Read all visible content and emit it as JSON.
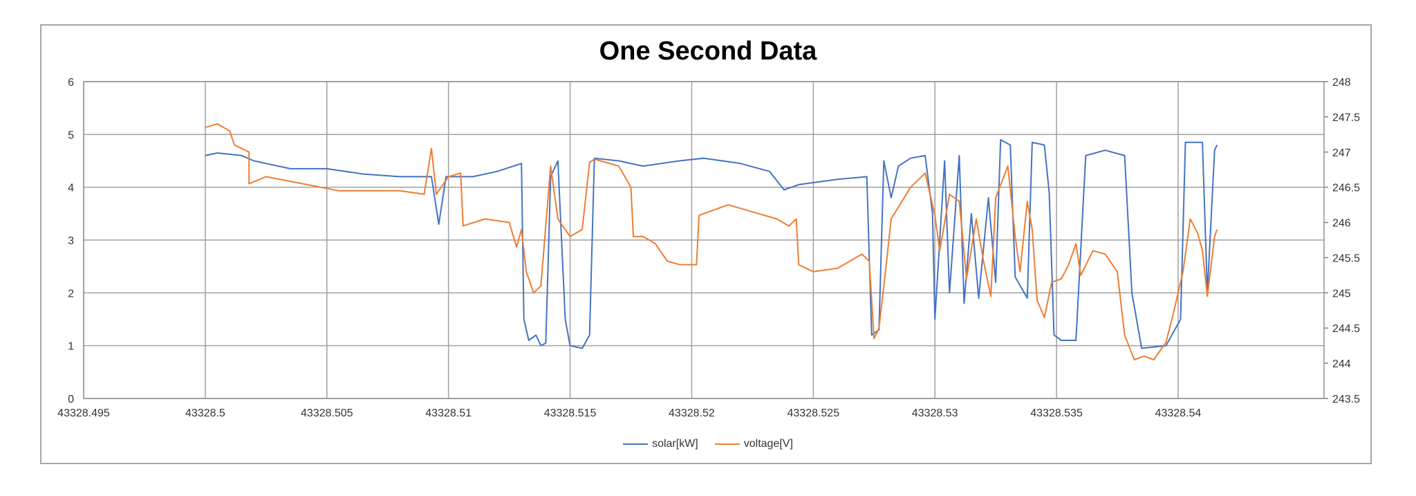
{
  "chart_data": {
    "type": "line",
    "title": "One Second Data",
    "x_ticks": [
      "43328.495",
      "43328.5",
      "43328.505",
      "43328.51",
      "43328.515",
      "43328.52",
      "43328.525",
      "43328.53",
      "43328.535",
      "43328.54"
    ],
    "xlim": [
      43328.495,
      43328.546
    ],
    "y_ticks_left": [
      "0",
      "1",
      "2",
      "3",
      "4",
      "5",
      "6"
    ],
    "ylim_left": [
      0,
      6
    ],
    "y_ticks_right": [
      "243.5",
      "244",
      "244.5",
      "245",
      "245.5",
      "246",
      "246.5",
      "247",
      "247.5",
      "248"
    ],
    "ylim_right": [
      243.5,
      248
    ],
    "grid": true,
    "legend_position": "bottom",
    "series": [
      {
        "name": "solar[kW]",
        "axis": "left",
        "color": "#4472C4",
        "points": [
          [
            43328.5,
            4.6
          ],
          [
            43328.5005,
            4.65
          ],
          [
            43328.5015,
            4.6
          ],
          [
            43328.502,
            4.5
          ],
          [
            43328.5035,
            4.35
          ],
          [
            43328.505,
            4.35
          ],
          [
            43328.5065,
            4.25
          ],
          [
            43328.508,
            4.2
          ],
          [
            43328.5093,
            4.2
          ],
          [
            43328.5096,
            3.3
          ],
          [
            43328.5099,
            4.2
          ],
          [
            43328.511,
            4.2
          ],
          [
            43328.512,
            4.3
          ],
          [
            43328.513,
            4.45
          ],
          [
            43328.5131,
            1.5
          ],
          [
            43328.5133,
            1.1
          ],
          [
            43328.5136,
            1.2
          ],
          [
            43328.5138,
            1.0
          ],
          [
            43328.514,
            1.05
          ],
          [
            43328.5142,
            4.2
          ],
          [
            43328.5145,
            4.5
          ],
          [
            43328.5148,
            1.5
          ],
          [
            43328.515,
            1.0
          ],
          [
            43328.5155,
            0.95
          ],
          [
            43328.5158,
            1.2
          ],
          [
            43328.516,
            4.55
          ],
          [
            43328.517,
            4.5
          ],
          [
            43328.518,
            4.4
          ],
          [
            43328.5195,
            4.5
          ],
          [
            43328.5205,
            4.55
          ],
          [
            43328.522,
            4.45
          ],
          [
            43328.5232,
            4.3
          ],
          [
            43328.5238,
            3.95
          ],
          [
            43328.5244,
            4.05
          ],
          [
            43328.526,
            4.15
          ],
          [
            43328.5272,
            4.2
          ],
          [
            43328.5274,
            1.2
          ],
          [
            43328.5277,
            1.3
          ],
          [
            43328.5279,
            4.5
          ],
          [
            43328.5282,
            3.8
          ],
          [
            43328.5285,
            4.4
          ],
          [
            43328.529,
            4.55
          ],
          [
            43328.5296,
            4.6
          ],
          [
            43328.5299,
            3.5
          ],
          [
            43328.53,
            1.5
          ],
          [
            43328.5304,
            4.5
          ],
          [
            43328.5306,
            2.0
          ],
          [
            43328.531,
            4.6
          ],
          [
            43328.5312,
            1.8
          ],
          [
            43328.5315,
            3.5
          ],
          [
            43328.5318,
            1.9
          ],
          [
            43328.5322,
            3.8
          ],
          [
            43328.5325,
            2.2
          ],
          [
            43328.5327,
            4.9
          ],
          [
            43328.5331,
            4.8
          ],
          [
            43328.5333,
            2.3
          ],
          [
            43328.5338,
            1.9
          ],
          [
            43328.534,
            4.85
          ],
          [
            43328.5345,
            4.8
          ],
          [
            43328.5347,
            3.9
          ],
          [
            43328.5349,
            1.2
          ],
          [
            43328.5352,
            1.1
          ],
          [
            43328.5358,
            1.1
          ],
          [
            43328.5362,
            4.6
          ],
          [
            43328.537,
            4.7
          ],
          [
            43328.5378,
            4.6
          ],
          [
            43328.5381,
            2.0
          ],
          [
            43328.5385,
            0.95
          ],
          [
            43328.5395,
            1.0
          ],
          [
            43328.5401,
            1.5
          ],
          [
            43328.5403,
            4.85
          ],
          [
            43328.541,
            4.85
          ],
          [
            43328.5412,
            2.0
          ],
          [
            43328.5415,
            4.7
          ],
          [
            43328.5416,
            4.8
          ]
        ]
      },
      {
        "name": "voltage[V]",
        "axis": "right",
        "color": "#ED7D31",
        "points": [
          [
            43328.5,
            247.35
          ],
          [
            43328.5005,
            247.4
          ],
          [
            43328.501,
            247.3
          ],
          [
            43328.5012,
            247.1
          ],
          [
            43328.5018,
            247.0
          ],
          [
            43328.5018,
            246.55
          ],
          [
            43328.5025,
            246.65
          ],
          [
            43328.504,
            246.55
          ],
          [
            43328.5055,
            246.45
          ],
          [
            43328.507,
            246.45
          ],
          [
            43328.508,
            246.45
          ],
          [
            43328.509,
            246.4
          ],
          [
            43328.5093,
            247.05
          ],
          [
            43328.5095,
            246.4
          ],
          [
            43328.51,
            246.65
          ],
          [
            43328.5105,
            246.7
          ],
          [
            43328.5106,
            245.95
          ],
          [
            43328.5115,
            246.05
          ],
          [
            43328.5125,
            246.0
          ],
          [
            43328.5128,
            245.65
          ],
          [
            43328.513,
            245.9
          ],
          [
            43328.5132,
            245.3
          ],
          [
            43328.5135,
            245.0
          ],
          [
            43328.5138,
            245.1
          ],
          [
            43328.5142,
            246.8
          ],
          [
            43328.5145,
            246.05
          ],
          [
            43328.515,
            245.8
          ],
          [
            43328.5155,
            245.9
          ],
          [
            43328.5158,
            246.85
          ],
          [
            43328.516,
            246.9
          ],
          [
            43328.517,
            246.8
          ],
          [
            43328.5175,
            246.5
          ],
          [
            43328.5176,
            245.8
          ],
          [
            43328.518,
            245.8
          ],
          [
            43328.5185,
            245.7
          ],
          [
            43328.519,
            245.45
          ],
          [
            43328.5195,
            245.4
          ],
          [
            43328.5202,
            245.4
          ],
          [
            43328.5203,
            246.1
          ],
          [
            43328.5215,
            246.25
          ],
          [
            43328.5225,
            246.15
          ],
          [
            43328.5235,
            246.05
          ],
          [
            43328.524,
            245.95
          ],
          [
            43328.5243,
            246.05
          ],
          [
            43328.5244,
            245.4
          ],
          [
            43328.525,
            245.3
          ],
          [
            43328.526,
            245.35
          ],
          [
            43328.527,
            245.55
          ],
          [
            43328.5273,
            245.45
          ],
          [
            43328.5275,
            244.35
          ],
          [
            43328.5277,
            244.5
          ],
          [
            43328.528,
            245.4
          ],
          [
            43328.5282,
            246.05
          ],
          [
            43328.529,
            246.5
          ],
          [
            43328.5296,
            246.7
          ],
          [
            43328.53,
            246.1
          ],
          [
            43328.5302,
            245.6
          ],
          [
            43328.5306,
            246.4
          ],
          [
            43328.531,
            246.3
          ],
          [
            43328.5313,
            245.2
          ],
          [
            43328.5317,
            246.05
          ],
          [
            43328.532,
            245.45
          ],
          [
            43328.5323,
            244.95
          ],
          [
            43328.5325,
            246.35
          ],
          [
            43328.533,
            246.8
          ],
          [
            43328.5333,
            245.8
          ],
          [
            43328.5335,
            245.3
          ],
          [
            43328.5338,
            246.3
          ],
          [
            43328.534,
            245.9
          ],
          [
            43328.5342,
            244.9
          ],
          [
            43328.5345,
            244.65
          ],
          [
            43328.5348,
            245.15
          ],
          [
            43328.5352,
            245.2
          ],
          [
            43328.5355,
            245.4
          ],
          [
            43328.5358,
            245.7
          ],
          [
            43328.536,
            245.25
          ],
          [
            43328.5365,
            245.6
          ],
          [
            43328.537,
            245.55
          ],
          [
            43328.5375,
            245.3
          ],
          [
            43328.5378,
            244.4
          ],
          [
            43328.5382,
            244.05
          ],
          [
            43328.5386,
            244.1
          ],
          [
            43328.539,
            244.05
          ],
          [
            43328.5395,
            244.3
          ],
          [
            43328.5398,
            244.7
          ],
          [
            43328.5402,
            245.3
          ],
          [
            43328.5405,
            246.05
          ],
          [
            43328.5408,
            245.85
          ],
          [
            43328.541,
            245.6
          ],
          [
            43328.5412,
            244.95
          ],
          [
            43328.5415,
            245.8
          ],
          [
            43328.5416,
            245.9
          ]
        ]
      }
    ]
  }
}
